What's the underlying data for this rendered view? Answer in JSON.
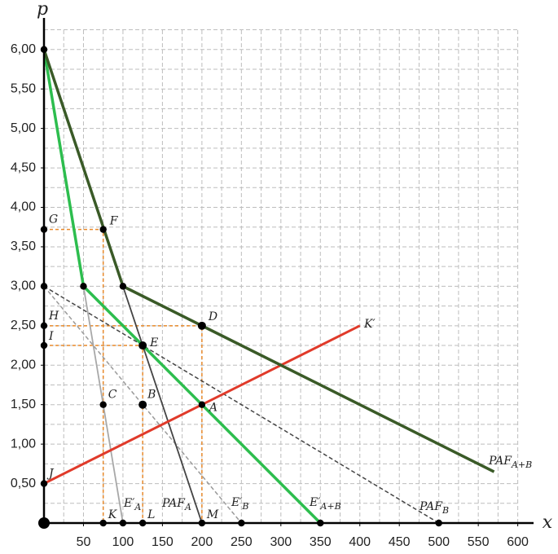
{
  "chart_data": {
    "type": "line",
    "ylabel": "p",
    "xlabel": "x",
    "xlim": [
      0,
      620
    ],
    "ylim": [
      0,
      6.4
    ],
    "xticks": [
      50,
      100,
      150,
      200,
      250,
      300,
      350,
      400,
      450,
      500,
      550,
      600
    ],
    "yticks": [
      {
        "value": 0.5,
        "label": "0,50"
      },
      {
        "value": 1,
        "label": "1,00"
      },
      {
        "value": 1.5,
        "label": "1,50"
      },
      {
        "value": 2,
        "label": "2,00"
      },
      {
        "value": 2.5,
        "label": "2,50"
      },
      {
        "value": 3,
        "label": "3,00"
      },
      {
        "value": 3.5,
        "label": "3,50"
      },
      {
        "value": 4,
        "label": "4,00"
      },
      {
        "value": 4.5,
        "label": "4,50"
      },
      {
        "value": 5,
        "label": "5,00"
      },
      {
        "value": 5.5,
        "label": "5,50"
      },
      {
        "value": 6,
        "label": "6,00"
      }
    ],
    "grid": true,
    "xgrid": [
      25,
      50,
      75,
      100,
      125,
      150,
      175,
      200,
      225,
      250,
      275,
      300,
      325,
      350,
      375,
      400,
      425,
      450,
      475,
      500,
      525,
      550,
      575,
      600
    ],
    "ygrid": [
      0.25,
      0.5,
      0.75,
      1,
      1.25,
      1.5,
      1.75,
      2,
      2.25,
      2.5,
      2.75,
      3,
      3.25,
      3.5,
      3.75,
      4,
      4.25,
      4.5,
      4.75,
      5,
      5.25,
      5.5,
      5.75,
      6,
      6.25
    ],
    "series": [
      {
        "name": "PAF",
        "name_sub": "A+B",
        "color": "#3a5a27",
        "x": [
          0,
          75,
          100,
          200,
          570
        ],
        "values": [
          6,
          3.75,
          3,
          2.5,
          0.65
        ]
      },
      {
        "name": "E′",
        "name_sub": "A+B",
        "color": "#2dbd4e",
        "x": [
          0,
          50,
          125,
          200,
          350
        ],
        "values": [
          6,
          3,
          2.25,
          1.5,
          0
        ]
      },
      {
        "name": "PAF",
        "name_sub": "A",
        "color": "#444444",
        "x": [
          100,
          200
        ],
        "values": [
          3,
          0
        ]
      },
      {
        "name": "E′",
        "name_sub": "A",
        "color": "#a8a8a8",
        "x": [
          50,
          100
        ],
        "values": [
          3,
          0
        ]
      },
      {
        "name": "E′",
        "name_sub": "B",
        "color": "#9a9a9a",
        "dashed": true,
        "x": [
          0,
          250
        ],
        "values": [
          3,
          0
        ]
      },
      {
        "name": "PAF",
        "name_sub": "B",
        "color": "#444444",
        "dashed": true,
        "x": [
          0,
          500
        ],
        "values": [
          3,
          0
        ]
      },
      {
        "name": "K′",
        "color": "#e03a2a",
        "x": [
          0,
          400
        ],
        "values": [
          0.5,
          2.5
        ]
      }
    ],
    "guides_color": "#e8892a",
    "guides": [
      {
        "x": [
          0,
          75,
          75
        ],
        "values": [
          3.72,
          3.72,
          0
        ]
      },
      {
        "x": [
          0,
          200,
          200
        ],
        "values": [
          2.5,
          2.5,
          0
        ]
      },
      {
        "x": [
          0,
          125,
          125
        ],
        "values": [
          2.25,
          2.25,
          0
        ]
      }
    ],
    "points": [
      {
        "label": "G",
        "x": 0,
        "y": 3.72
      },
      {
        "label": "F",
        "x": 75,
        "y": 3.72
      },
      {
        "label": "H",
        "x": 0,
        "y": 2.5
      },
      {
        "label": "D",
        "x": 200,
        "y": 2.5
      },
      {
        "label": "I",
        "x": 0,
        "y": 2.25
      },
      {
        "label": "E",
        "x": 125,
        "y": 2.25
      },
      {
        "label": "C",
        "x": 75,
        "y": 1.5
      },
      {
        "label": "B",
        "x": 125,
        "y": 1.5
      },
      {
        "label": "A",
        "x": 200,
        "y": 1.5
      },
      {
        "label": "J",
        "x": 0,
        "y": 0.5
      },
      {
        "label": "K",
        "x": 75,
        "y": 0
      },
      {
        "label": "L",
        "x": 125,
        "y": 0
      },
      {
        "label": "M",
        "x": 200,
        "y": 0
      },
      {
        "x": 0,
        "y": 6
      },
      {
        "x": 0,
        "y": 3
      },
      {
        "x": 50,
        "y": 3
      },
      {
        "x": 100,
        "y": 3
      },
      {
        "x": 100,
        "y": 0
      },
      {
        "x": 250,
        "y": 0
      },
      {
        "x": 350,
        "y": 0
      },
      {
        "x": 500,
        "y": 0
      }
    ]
  }
}
